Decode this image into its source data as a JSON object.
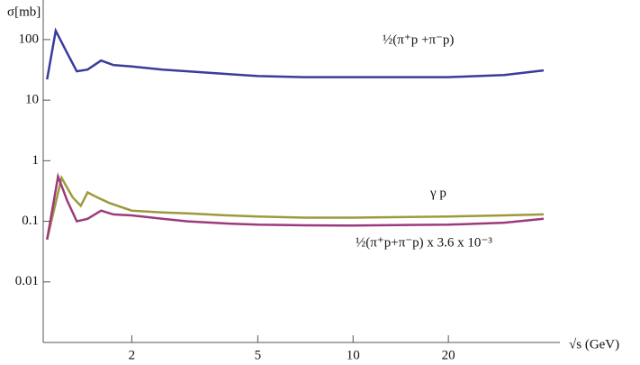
{
  "chart_data": {
    "type": "line",
    "log_x": true,
    "log_y": true,
    "y_label": "σ[mb]",
    "x_label": "√s (GeV)",
    "xlim": [
      1.05,
      45
    ],
    "xticks": [
      2,
      5,
      10,
      20
    ],
    "ylim": [
      0.001,
      450
    ],
    "yticks": [
      0.01,
      0.1,
      1,
      10,
      100
    ],
    "series": [
      {
        "name": "½(π⁺p +π⁻p)",
        "color": "#3b3b9c",
        "x": [
          1.08,
          1.15,
          1.25,
          1.34,
          1.45,
          1.6,
          1.75,
          2.0,
          2.5,
          3.0,
          4.0,
          5.0,
          7.0,
          10.0,
          15.0,
          20.0,
          30.0,
          40.0
        ],
        "values": [
          22,
          140,
          60,
          30,
          32,
          45,
          38,
          36,
          32,
          30,
          27,
          25,
          24,
          24,
          24,
          24,
          26,
          31
        ]
      },
      {
        "name": "γ p",
        "color": "#9c9a3c",
        "x": [
          1.08,
          1.2,
          1.3,
          1.38,
          1.45,
          1.55,
          1.7,
          2.0,
          2.5,
          3.0,
          4.0,
          5.0,
          7.0,
          10.0,
          15.0,
          20.0,
          30.0,
          40.0
        ],
        "values": [
          0.05,
          0.52,
          0.25,
          0.18,
          0.3,
          0.25,
          0.2,
          0.15,
          0.14,
          0.135,
          0.125,
          0.12,
          0.115,
          0.115,
          0.118,
          0.12,
          0.125,
          0.13
        ]
      },
      {
        "name": "½(π⁺p+π⁻p) x 3.6 x 10⁻³",
        "color": "#9c3a7c",
        "x": [
          1.08,
          1.17,
          1.25,
          1.34,
          1.45,
          1.6,
          1.75,
          2.0,
          2.5,
          3.0,
          4.0,
          5.0,
          7.0,
          10.0,
          15.0,
          20.0,
          30.0,
          40.0
        ],
        "values": [
          0.05,
          0.55,
          0.22,
          0.1,
          0.11,
          0.15,
          0.13,
          0.125,
          0.11,
          0.1,
          0.092,
          0.088,
          0.086,
          0.085,
          0.087,
          0.088,
          0.095,
          0.11
        ]
      }
    ]
  }
}
